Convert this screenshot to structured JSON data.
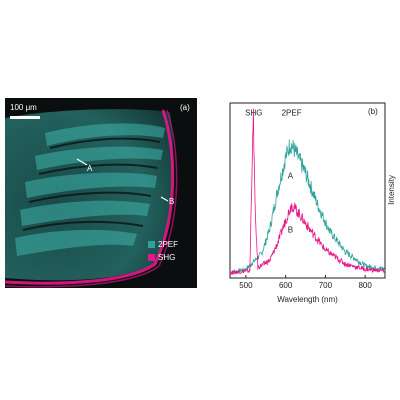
{
  "panel_a": {
    "panel_label": "(a)",
    "scale_bar_label": "100 μm",
    "point_labels": [
      "A",
      "B"
    ],
    "legend": [
      {
        "label": "2PEF",
        "color": "#2fa39a"
      },
      {
        "label": "SHG",
        "color": "#e8168a"
      }
    ]
  },
  "chart_data": {
    "type": "line",
    "panel_label": "(b)",
    "xlabel": "Wavelength (nm)",
    "ylabel": "Intensity",
    "xlim": [
      460,
      850
    ],
    "ylim": [
      0,
      1
    ],
    "x_ticks": [
      500,
      600,
      700,
      800
    ],
    "annotations": [
      {
        "text": "SHG",
        "x": 520,
        "y": 0.93
      },
      {
        "text": "2PEF",
        "x": 615,
        "y": 0.93
      },
      {
        "text": "A",
        "x": 612,
        "y": 0.57
      },
      {
        "text": "B",
        "x": 612,
        "y": 0.26
      }
    ],
    "series": [
      {
        "color": "#2fa39a",
        "points": [
          [
            460,
            0.03
          ],
          [
            500,
            0.05
          ],
          [
            540,
            0.14
          ],
          [
            560,
            0.28
          ],
          [
            580,
            0.5
          ],
          [
            600,
            0.69
          ],
          [
            612,
            0.77
          ],
          [
            625,
            0.72
          ],
          [
            650,
            0.6
          ],
          [
            680,
            0.42
          ],
          [
            710,
            0.27
          ],
          [
            750,
            0.15
          ],
          [
            800,
            0.07
          ],
          [
            850,
            0.05
          ]
        ]
      },
      {
        "color": "#e8168a",
        "points": [
          [
            460,
            0.03
          ],
          [
            500,
            0.04
          ],
          [
            510,
            0.04
          ],
          [
            515,
            0.6
          ],
          [
            519,
            0.92
          ],
          [
            523,
            0.4
          ],
          [
            530,
            0.06
          ],
          [
            560,
            0.1
          ],
          [
            580,
            0.2
          ],
          [
            600,
            0.33
          ],
          [
            615,
            0.42
          ],
          [
            630,
            0.38
          ],
          [
            660,
            0.28
          ],
          [
            700,
            0.16
          ],
          [
            750,
            0.08
          ],
          [
            800,
            0.05
          ],
          [
            850,
            0.04
          ]
        ]
      }
    ]
  },
  "colors": {
    "teal": "#2fa39a",
    "magenta": "#e8168a"
  }
}
